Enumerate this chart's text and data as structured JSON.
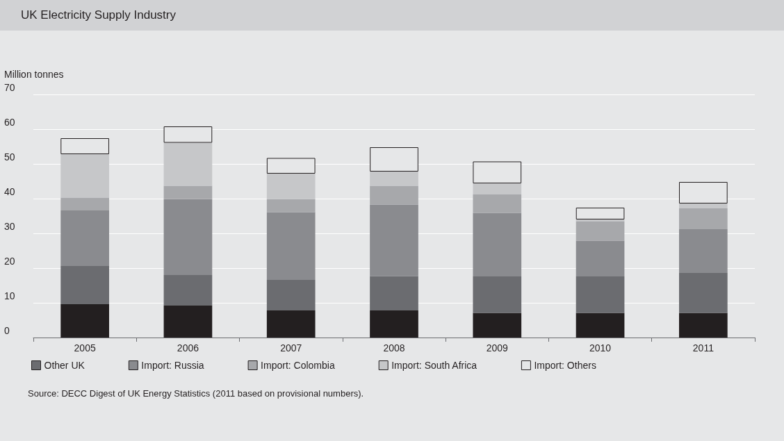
{
  "chart_data": {
    "type": "bar",
    "title": "UK Electricity Supply Industry",
    "ylabel": "Million tonnes",
    "stacked": true,
    "categories": [
      "2005",
      "2006",
      "2007",
      "2008",
      "2009",
      "2010",
      "2011"
    ],
    "series": [
      {
        "color": "#231f20",
        "values": [
          9.6,
          9.2,
          7.8,
          7.8,
          7.1,
          7.1,
          7.1
        ]
      },
      {
        "name": "Other UK",
        "color": "#6b6c70",
        "values": [
          11.0,
          8.8,
          8.8,
          9.9,
          10.5,
          10.5,
          11.5
        ]
      },
      {
        "name": "Import: Russia",
        "color": "#8a8b8f",
        "values": [
          16.0,
          21.9,
          19.5,
          20.6,
          18.3,
          10.3,
          12.6
        ]
      },
      {
        "name": "Import: Colombia",
        "color": "#a7a8ab",
        "values": [
          3.6,
          3.8,
          3.8,
          5.4,
          5.3,
          5.6,
          6.0
        ]
      },
      {
        "name": "Import: South Africa",
        "color": "#c6c7c9",
        "values": [
          12.6,
          12.4,
          7.3,
          4.1,
          3.2,
          0.5,
          1.4
        ]
      },
      {
        "name": "Import: Others",
        "color": "#e6e7e8",
        "values": [
          4.6,
          4.7,
          4.5,
          7.0,
          6.3,
          3.4,
          6.2
        ]
      }
    ],
    "ylim": [
      0,
      70
    ],
    "yticks": [
      0,
      10,
      20,
      30,
      40,
      50,
      60,
      70
    ],
    "grid": "y",
    "legend": "bottom",
    "annotations": [
      "Source: DECC Digest of UK Energy Statistics (2011 based on provisional numbers)."
    ]
  }
}
